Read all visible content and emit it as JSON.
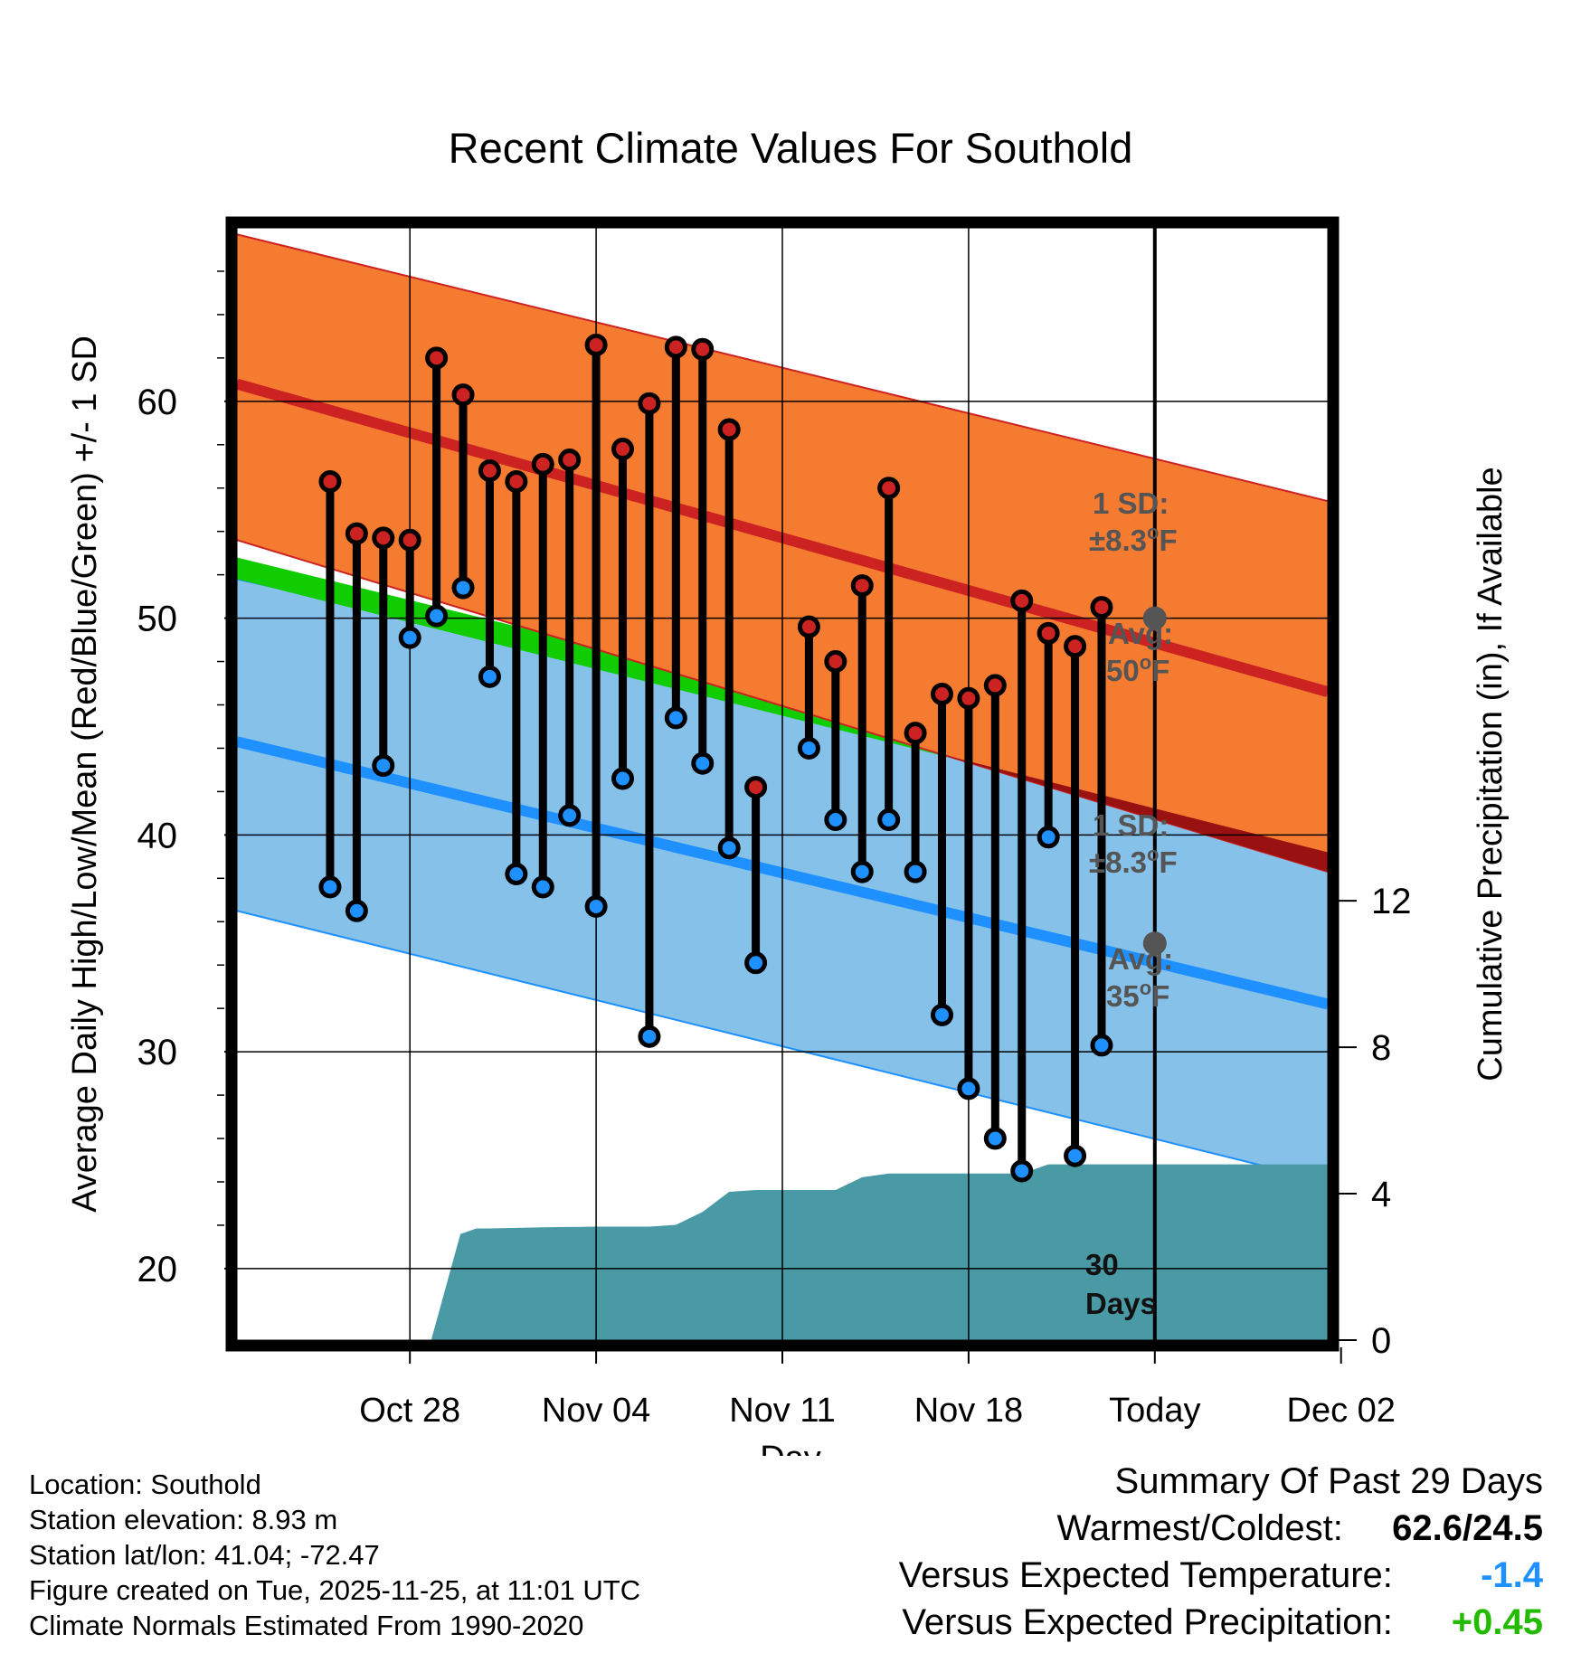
{
  "chart_data": {
    "type": "line",
    "title": "Recent Climate Values For Southold",
    "xlabel": "Day",
    "ylabel": "Average Daily High/Low/Mean (Red/Blue/Green) +/- 1 SD",
    "y2label": "Cumulative Precipitation (in), If Available",
    "xlim": [
      -3.5,
      37.5
    ],
    "ylim": [
      16.7,
      68
    ],
    "y2lim": [
      0,
      24
    ],
    "today_index": 31,
    "x_ticks": [
      {
        "index": 3,
        "label": "Oct 28"
      },
      {
        "index": 10,
        "label": "Nov 04"
      },
      {
        "index": 17,
        "label": "Nov 11"
      },
      {
        "index": 24,
        "label": "Nov 18"
      },
      {
        "index": 31,
        "label": "Today"
      },
      {
        "index": 38,
        "label": "Dec 02"
      }
    ],
    "y_ticks": [
      20,
      30,
      40,
      50,
      60
    ],
    "y2_ticks": [
      0,
      4,
      8,
      12
    ],
    "normals": {
      "x": [
        -3.5,
        37.5
      ],
      "high_mean": [
        60.8,
        46.6
      ],
      "high_upper": [
        67.7,
        55.4
      ],
      "high_lower": [
        53.6,
        38.3
      ],
      "low_mean": [
        44.3,
        32.2
      ],
      "low_upper": [
        51.8,
        40.8
      ],
      "low_lower": [
        36.5,
        24.0
      ],
      "avg_mean_upper": [
        52.8,
        40.4
      ],
      "avg_mean_lower": [
        51.8,
        39.2
      ]
    },
    "series": [
      {
        "name": "Daily High",
        "color": "#cc2222",
        "x": [
          0,
          1,
          2,
          3,
          4,
          5,
          6,
          7,
          8,
          9,
          10,
          11,
          12,
          13,
          14,
          15,
          16,
          17,
          18,
          19,
          20,
          21,
          22,
          23,
          24,
          25,
          26,
          27,
          28,
          29,
          30
        ],
        "values": [
          56.3,
          53.9,
          53.7,
          53.6,
          62.0,
          60.3,
          56.8,
          56.3,
          57.1,
          57.3,
          62.6,
          57.8,
          59.9,
          62.5,
          62.4,
          58.7,
          42.2,
          null,
          49.6,
          48.0,
          51.5,
          56.0,
          44.7,
          46.5,
          46.3,
          46.9,
          50.8,
          49.3,
          48.7,
          50.5,
          null
        ]
      },
      {
        "name": "Daily Low",
        "color": "#1e90ff",
        "x": [
          0,
          1,
          2,
          3,
          4,
          5,
          6,
          7,
          8,
          9,
          10,
          11,
          12,
          13,
          14,
          15,
          16,
          17,
          18,
          19,
          20,
          21,
          22,
          23,
          24,
          25,
          26,
          27,
          28,
          29,
          30
        ],
        "values": [
          37.6,
          36.5,
          43.2,
          49.1,
          50.1,
          51.4,
          47.3,
          38.2,
          37.6,
          40.9,
          36.7,
          42.6,
          30.7,
          45.4,
          43.3,
          39.4,
          34.1,
          null,
          44.0,
          40.7,
          38.3,
          40.7,
          38.3,
          31.7,
          28.3,
          26.0,
          24.5,
          39.9,
          25.2,
          30.3,
          null
        ]
      },
      {
        "name": "Cumulative Precipitation",
        "color": "#4a9aa5",
        "axis": "y2",
        "x": [
          -3.5,
          0,
          1,
          2,
          3,
          3.8,
          4.9,
          5.5,
          6,
          8,
          10,
          12,
          13,
          14,
          15,
          16,
          17,
          18,
          19,
          20,
          21,
          22,
          24,
          25,
          26,
          27,
          28,
          29,
          30,
          31,
          37.5
        ],
        "values": [
          0,
          0,
          0,
          0,
          0,
          0,
          2.9,
          3.05,
          3.05,
          3.08,
          3.1,
          3.1,
          3.15,
          3.5,
          4.05,
          4.1,
          4.1,
          4.1,
          4.1,
          4.45,
          4.55,
          4.55,
          4.55,
          4.55,
          4.55,
          4.8,
          4.8,
          4.8,
          4.8,
          4.8,
          4.8
        ]
      }
    ],
    "annotations": {
      "high_sd": {
        "line1": "1 SD:",
        "pm": "±8.3",
        "unit": "F"
      },
      "high_avg": {
        "line1": "Avg:",
        "val": "50",
        "unit": "F",
        "value": 50
      },
      "low_sd": {
        "line1": "1 SD:",
        "pm": "±8.3",
        "unit": "F"
      },
      "low_avg": {
        "line1": "Avg:",
        "val": "35",
        "unit": "F",
        "value": 35
      },
      "deg": "o",
      "window_line1": "30",
      "window_line2": "Days"
    },
    "colors": {
      "high_band": "#f47b30",
      "high_line": "#cc2222",
      "low_band": "#85c1e9",
      "low_line": "#1e90ff",
      "mean_band": "#11cc00",
      "mean_cross": "#991111",
      "precip": "#4a9aa5",
      "annotation": "#555555"
    }
  },
  "meta": {
    "location": "Location: Southold",
    "elevation": "Station elevation: 8.93 m",
    "latlon": "Station lat/lon: 41.04; -72.47",
    "created": "Figure created on Tue, 2025-11-25, at 11:01 UTC",
    "normals": "Climate Normals Estimated From 1990-2020"
  },
  "summary": {
    "title": "Summary Of Past 29 Days",
    "warm_label": "Warmest/Coldest:",
    "warm_value": "62.6/24.5",
    "temp_label": "Versus Expected Temperature:",
    "temp_value": "-1.4",
    "temp_color": "#1e90ff",
    "precip_label": "Versus Expected Precipitation:",
    "precip_value": "+0.45",
    "precip_color": "#22bb00"
  }
}
